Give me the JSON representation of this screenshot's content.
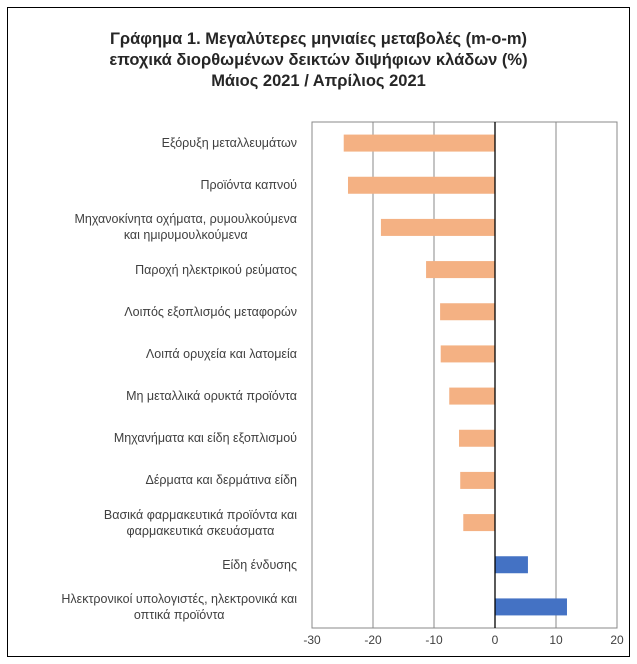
{
  "chart_data": {
    "type": "bar",
    "orientation": "horizontal",
    "title": [
      "Γράφημα 1. Μεγαλύτερες μηνιαίες μεταβολές (m-o-m)",
      "εποχικά διορθωμένων δεικτών διψήφιων κλάδων (%)",
      "Μάιος 2021 / Απρίλιος 2021"
    ],
    "categories": [
      "Εξόρυξη μεταλλευμάτων",
      "Προϊόντα καπνού",
      "Μηχανοκίνητα οχήματα, ρυμουλκούμενα\nκαι ημιρυμουλκούμενα",
      "Παροχή ηλεκτρικού ρεύματος",
      "Λοιπός εξοπλισμός μεταφορών",
      "Λοιπά ορυχεία και λατομεία",
      "Μη μεταλλικά ορυκτά προϊόντα",
      "Μηχανήματα και είδη εξοπλισμού",
      "Δέρματα και δερμάτινα είδη",
      "Βασικά φαρμακευτικά προϊόντα και\nφαρμακευτικά σκευάσματα",
      "Είδη ένδυσης",
      "Ηλεκτρονικοί υπολογιστές, ηλεκτρονικά και\nοπτικά προϊόντα"
    ],
    "values": [
      -24.8,
      -24.1,
      -18.7,
      -11.3,
      -9.0,
      -8.9,
      -7.5,
      -5.9,
      -5.7,
      -5.2,
      5.4,
      11.8
    ],
    "colors": [
      "#f4b183",
      "#f4b183",
      "#f4b183",
      "#f4b183",
      "#f4b183",
      "#f4b183",
      "#f4b183",
      "#f4b183",
      "#f4b183",
      "#f4b183",
      "#4472c4",
      "#4472c4"
    ],
    "xlim": [
      -30,
      20
    ],
    "xticks": [
      -30,
      -20,
      -10,
      0,
      10,
      20
    ],
    "grid": true
  }
}
